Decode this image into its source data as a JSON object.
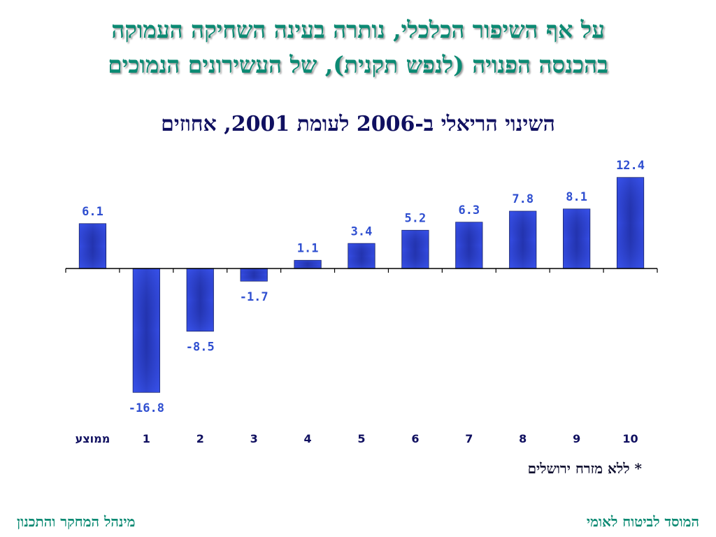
{
  "headline": {
    "line1": "על אף השיפור הכלכלי, נותרה בעינה השחיקה העמוקה",
    "line2": "בהכנסה הפנויה (לנפש תקנית), של העשירונים הנמוכים"
  },
  "chart_data": {
    "type": "bar",
    "title": "השינוי הריאלי ב-2006 לעומת 2001, אחוזים",
    "categories": [
      "ממוצע",
      "1",
      "2",
      "3",
      "4",
      "5",
      "6",
      "7",
      "8",
      "9",
      "10"
    ],
    "values": [
      6.1,
      -16.8,
      -8.5,
      -1.7,
      1.1,
      3.4,
      5.2,
      6.3,
      7.8,
      8.1,
      12.4
    ],
    "labels": [
      "6.1",
      "-16.8",
      "-8.5",
      "-1.7",
      "1.1",
      "3.4",
      "5.2",
      "6.3",
      "7.8",
      "8.1",
      "12.4"
    ],
    "xlabel": "",
    "ylabel": "",
    "ylim": [
      -16.8,
      12.4
    ],
    "grid": false,
    "colors": {
      "bar": "#2f43d8",
      "bar_center": "#1a2890",
      "label": "#2f4fd0",
      "axis": "#000000"
    }
  },
  "footnote": "* ללא מזרח ירושלים",
  "footer": {
    "left": "מינהל המחקר והתכנון",
    "right": "המוסד לביטוח לאומי"
  },
  "colors": {
    "headline": "#0b8a73",
    "title": "#101060"
  }
}
